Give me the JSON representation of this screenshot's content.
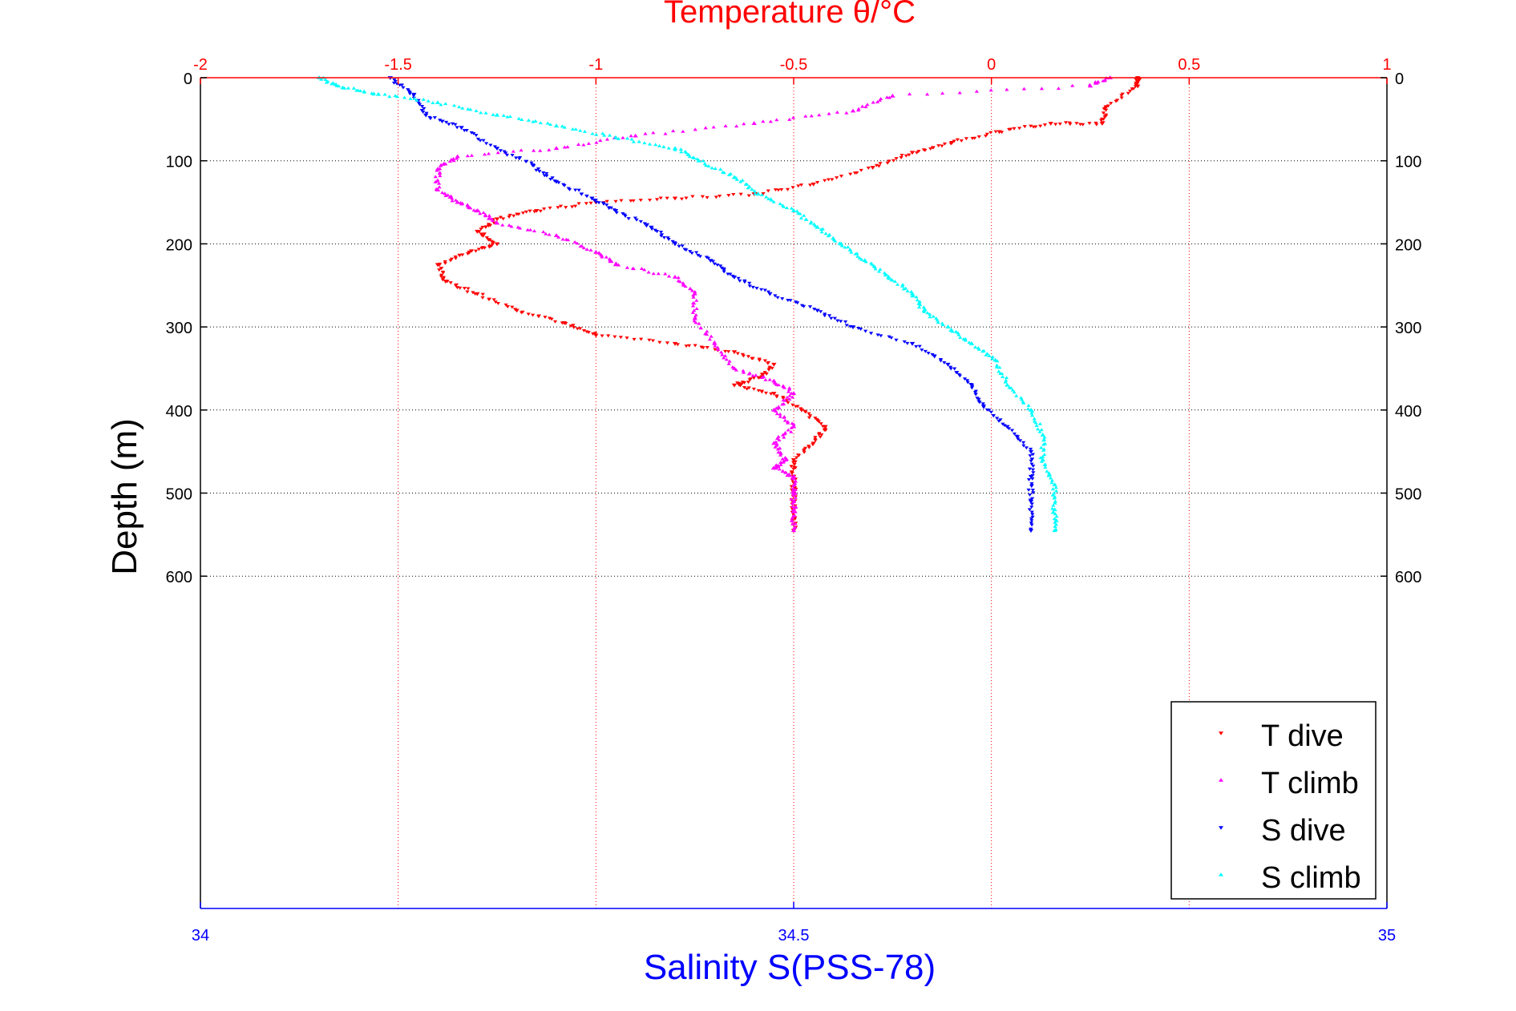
{
  "chart_data": {
    "type": "scatter",
    "title": "Temperature θ/°C",
    "xlabel": "Salinity S(PSS-78)",
    "ylabel": "Depth (m)",
    "top_axis": {
      "label": "Temperature θ/°C",
      "range": [
        -2,
        1
      ],
      "ticks": [
        "-2",
        "-1.5",
        "-1",
        "-0.5",
        "0",
        "0.5",
        "1"
      ],
      "color": "#ff0000"
    },
    "bottom_axis": {
      "label": "Salinity S(PSS-78)",
      "range": [
        34,
        35
      ],
      "ticks": [
        "34",
        "34.5",
        "35"
      ],
      "color": "#0000ff"
    },
    "y_axis": {
      "range": [
        0,
        1000
      ],
      "reversed": true,
      "ticks": [
        "0",
        "100",
        "200",
        "300",
        "400",
        "500",
        "600"
      ]
    },
    "grid": true,
    "legend_position": "bottom-right",
    "series": [
      {
        "name": "T dive",
        "axis": "temperature",
        "color": "#ff0000",
        "marker": "triangle-down",
        "points": [
          [
            0.37,
            0
          ],
          [
            0.37,
            10
          ],
          [
            0.29,
            35
          ],
          [
            0.28,
            55
          ],
          [
            0.15,
            55
          ],
          [
            0.02,
            65
          ],
          [
            -0.1,
            78
          ],
          [
            -0.2,
            90
          ],
          [
            -0.3,
            108
          ],
          [
            -0.45,
            128
          ],
          [
            -0.6,
            140
          ],
          [
            -0.8,
            145
          ],
          [
            -1.0,
            150
          ],
          [
            -1.15,
            160
          ],
          [
            -1.25,
            170
          ],
          [
            -1.3,
            185
          ],
          [
            -1.25,
            200
          ],
          [
            -1.32,
            210
          ],
          [
            -1.4,
            225
          ],
          [
            -1.38,
            245
          ],
          [
            -1.3,
            260
          ],
          [
            -1.2,
            280
          ],
          [
            -1.08,
            295
          ],
          [
            -1.0,
            310
          ],
          [
            -0.8,
            320
          ],
          [
            -0.65,
            330
          ],
          [
            -0.55,
            345
          ],
          [
            -0.58,
            360
          ],
          [
            -0.65,
            370
          ],
          [
            -0.55,
            380
          ],
          [
            -0.48,
            400
          ],
          [
            -0.42,
            420
          ],
          [
            -0.45,
            440
          ],
          [
            -0.5,
            460
          ],
          [
            -0.5,
            480
          ],
          [
            -0.5,
            500
          ],
          [
            -0.5,
            520
          ],
          [
            -0.5,
            545
          ]
        ]
      },
      {
        "name": "T climb",
        "axis": "temperature",
        "color": "#ff00ff",
        "marker": "triangle-up",
        "points": [
          [
            0.3,
            0
          ],
          [
            0.25,
            10
          ],
          [
            -0.25,
            22
          ],
          [
            -0.35,
            40
          ],
          [
            -0.6,
            55
          ],
          [
            -0.9,
            70
          ],
          [
            -1.1,
            85
          ],
          [
            -1.35,
            95
          ],
          [
            -1.4,
            110
          ],
          [
            -1.4,
            135
          ],
          [
            -1.35,
            150
          ],
          [
            -1.3,
            160
          ],
          [
            -1.25,
            175
          ],
          [
            -1.1,
            190
          ],
          [
            -1.0,
            210
          ],
          [
            -0.95,
            225
          ],
          [
            -0.8,
            240
          ],
          [
            -0.75,
            260
          ],
          [
            -0.75,
            290
          ],
          [
            -0.7,
            320
          ],
          [
            -0.65,
            350
          ],
          [
            -0.55,
            365
          ],
          [
            -0.5,
            380
          ],
          [
            -0.55,
            400
          ],
          [
            -0.5,
            420
          ],
          [
            -0.55,
            440
          ],
          [
            -0.52,
            460
          ],
          [
            -0.55,
            470
          ],
          [
            -0.5,
            480
          ],
          [
            -0.5,
            500
          ],
          [
            -0.5,
            520
          ],
          [
            -0.5,
            545
          ]
        ]
      },
      {
        "name": "S dive",
        "axis": "salinity",
        "color": "#0000ff",
        "marker": "triangle-down",
        "points": [
          [
            34.16,
            0
          ],
          [
            34.18,
            20
          ],
          [
            34.19,
            45
          ],
          [
            34.22,
            60
          ],
          [
            34.25,
            85
          ],
          [
            34.28,
            105
          ],
          [
            34.3,
            125
          ],
          [
            34.33,
            145
          ],
          [
            34.35,
            160
          ],
          [
            34.38,
            180
          ],
          [
            34.4,
            200
          ],
          [
            34.43,
            220
          ],
          [
            34.45,
            240
          ],
          [
            34.48,
            260
          ],
          [
            34.52,
            280
          ],
          [
            34.55,
            300
          ],
          [
            34.6,
            320
          ],
          [
            34.63,
            345
          ],
          [
            34.65,
            370
          ],
          [
            34.66,
            395
          ],
          [
            34.68,
            420
          ],
          [
            34.7,
            450
          ],
          [
            34.7,
            480
          ],
          [
            34.7,
            510
          ],
          [
            34.7,
            545
          ]
        ]
      },
      {
        "name": "S climb",
        "axis": "salinity",
        "color": "#00ffff",
        "marker": "triangle-up",
        "points": [
          [
            34.1,
            0
          ],
          [
            34.12,
            12
          ],
          [
            34.15,
            20
          ],
          [
            34.2,
            30
          ],
          [
            34.25,
            45
          ],
          [
            34.3,
            58
          ],
          [
            34.35,
            72
          ],
          [
            34.4,
            85
          ],
          [
            34.42,
            100
          ],
          [
            34.45,
            120
          ],
          [
            34.47,
            140
          ],
          [
            34.5,
            160
          ],
          [
            34.52,
            180
          ],
          [
            34.54,
            200
          ],
          [
            34.56,
            220
          ],
          [
            34.58,
            240
          ],
          [
            34.6,
            260
          ],
          [
            34.61,
            280
          ],
          [
            34.63,
            300
          ],
          [
            34.65,
            320
          ],
          [
            34.67,
            340
          ],
          [
            34.68,
            370
          ],
          [
            34.7,
            400
          ],
          [
            34.71,
            430
          ],
          [
            34.71,
            460
          ],
          [
            34.72,
            490
          ],
          [
            34.72,
            520
          ],
          [
            34.72,
            545
          ]
        ]
      }
    ]
  }
}
